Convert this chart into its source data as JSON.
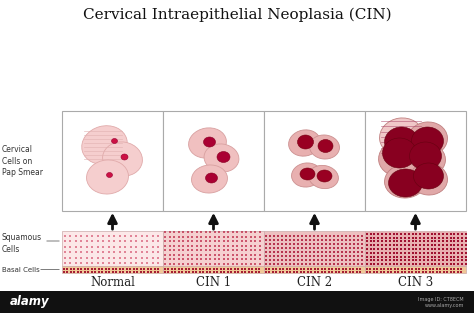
{
  "title": "Cervical Intraepithelial Neoplasia (CIN)",
  "title_fontsize": 11,
  "bg_color": "#ffffff",
  "labels": [
    "Normal",
    "CIN 1",
    "CIN 2",
    "CIN 3"
  ],
  "box_edge_color": "#aaaaaa",
  "arrow_color": "#111111",
  "tissue_basal_color": "#f0c898",
  "alamy_bar_color": "#111111"
}
